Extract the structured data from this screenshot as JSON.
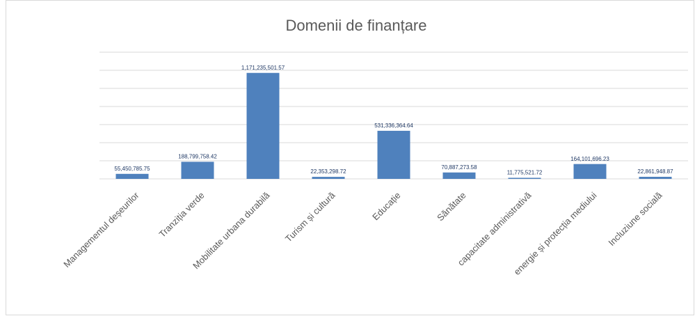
{
  "chart_data": {
    "type": "bar",
    "title": "Domenii de finanțare",
    "categories": [
      "Managementul deșeurilor",
      "Tranziția verde",
      "Mobilitate urbana durabilă",
      "Turism și cultură",
      "Educație",
      "Sănătate",
      "capacitate administrativă",
      "energie și protecția mediului",
      "Incluziune socială"
    ],
    "values": [
      55450785.75,
      188799758.42,
      1171235501.57,
      22353298.72,
      531336364.64,
      70887273.58,
      11775521.72,
      164101696.23,
      22861948.87
    ],
    "value_labels": [
      "55,450,785.75",
      "188,799,758.42",
      "1,171,235,501.57",
      "22,353,298.72",
      "531,336,364.64",
      "70,887,273.58",
      "11,775,521.72",
      "164,101,696.23",
      "22,861,948.87"
    ],
    "color": "#4f81bd",
    "ylim": [
      0,
      1400000000
    ],
    "yticks": [
      0,
      200000000,
      400000000,
      600000000,
      800000000,
      1000000000,
      1200000000,
      1400000000
    ],
    "grid": true
  }
}
